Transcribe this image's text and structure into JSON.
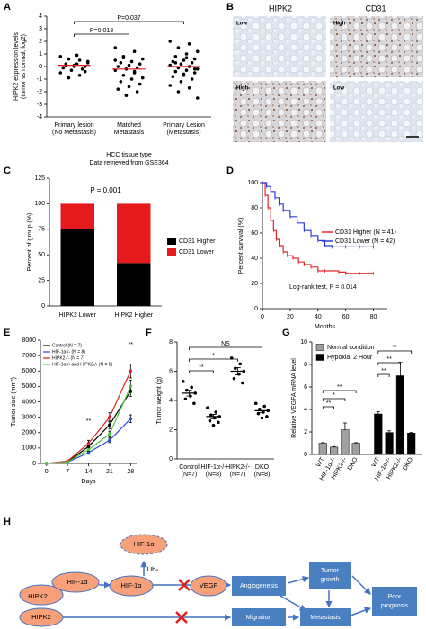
{
  "panel_labels": [
    "A",
    "B",
    "C",
    "D",
    "E",
    "F",
    "G",
    "H"
  ],
  "chart_data": [
    {
      "type": "strip",
      "ylabel": [
        "HIPK2 expression levels",
        "(tumor vs normal, log2)"
      ],
      "ylim": [
        -4,
        4
      ],
      "yticks": [
        -4,
        -3,
        -2,
        -1,
        0,
        1,
        2,
        3,
        4
      ],
      "categories": [
        [
          "Primary lesion",
          "(No Metastasis)"
        ],
        [
          "Matched",
          "Metastasis"
        ],
        [
          "Primary Lesion",
          "(Metastasis)"
        ]
      ],
      "values": [
        [
          0.8,
          0.5,
          0.6,
          0.3,
          0.2,
          0.1,
          0,
          0,
          -0.1,
          -0.2,
          -0.3,
          -0.5,
          -0.7,
          -0.9,
          0.4,
          0.9,
          0.2,
          -0.4,
          0.1,
          -0.1
        ],
        [
          1.5,
          1.2,
          0.8,
          0.6,
          0.4,
          0.3,
          0.2,
          0.1,
          0,
          -0.1,
          -0.2,
          -0.3,
          -0.5,
          -0.7,
          -0.9,
          -1.0,
          -1.2,
          -1.4,
          -1.6,
          -1.8,
          -2.0,
          -2.3,
          0.5,
          -0.4,
          0.7
        ],
        [
          2.0,
          1.8,
          1.5,
          1.2,
          1.0,
          0.8,
          0.6,
          0.5,
          0.4,
          0.3,
          0.2,
          0.1,
          0,
          -0.1,
          -0.2,
          -0.3,
          -0.4,
          -0.5,
          -0.6,
          -0.8,
          -1.0,
          -1.2,
          -1.5,
          -1.7,
          -2.0,
          -2.5,
          0.7,
          0.3,
          -0.2,
          -0.7
        ]
      ],
      "means": [
        0.1,
        -0.2,
        0.0
      ],
      "point_color": "#000000",
      "mean_color": "#e8161b",
      "xlabel": [
        "HCC tissue type",
        "Data retrieved from GSE364"
      ],
      "annotations": [
        "P=0.037",
        "P=0.018"
      ]
    },
    {
      "type": "stacked_bar",
      "title": "P = 0.001",
      "ylabel": "Percent of group (%)",
      "ylim": [
        0,
        125
      ],
      "yticks": [
        0,
        25,
        50,
        75,
        100,
        125
      ],
      "categories": [
        "HIPK2 Lower",
        "HIPK2 Higher"
      ],
      "series": [
        {
          "name": "CD31 Higher",
          "color": "#000000",
          "values": [
            75,
            42
          ]
        },
        {
          "name": "CD31 Lower",
          "color": "#e41a1c",
          "values": [
            25,
            58
          ]
        }
      ]
    },
    {
      "type": "survival",
      "xlabel": "Months",
      "ylabel": "Percent survival (%)",
      "xlim": [
        0,
        90
      ],
      "xticks": [
        0,
        20,
        40,
        60,
        80
      ],
      "ylim": [
        0,
        100
      ],
      "yticks": [
        0,
        20,
        40,
        60,
        80,
        100
      ],
      "annotation": "Log-rank test,  P = 0.014",
      "legend": "upper right",
      "series": [
        {
          "name": "CD31 Higher (N = 41)",
          "color": "#e3262a",
          "x": [
            0,
            2,
            4,
            6,
            8,
            10,
            12,
            15,
            18,
            22,
            26,
            30,
            35,
            40,
            45,
            55,
            60,
            70,
            80
          ],
          "values": [
            100,
            90,
            80,
            70,
            62,
            55,
            50,
            45,
            42,
            40,
            37,
            35,
            33,
            30,
            30,
            29,
            28,
            28,
            28
          ]
        },
        {
          "name": "CD31 Lower (N = 42)",
          "color": "#2b3bd6",
          "x": [
            0,
            3,
            6,
            9,
            12,
            15,
            20,
            25,
            30,
            35,
            40,
            45,
            50,
            60,
            70,
            80
          ],
          "values": [
            100,
            97,
            93,
            88,
            83,
            78,
            73,
            68,
            62,
            58,
            54,
            50,
            49,
            49,
            49,
            49
          ]
        }
      ]
    },
    {
      "type": "line",
      "xlabel": "Days",
      "ylabel": "Tumor size (mm³)",
      "x": [
        0,
        7,
        14,
        21,
        28
      ],
      "xlim": [
        -2,
        30
      ],
      "xticks": [
        0,
        7,
        14,
        21,
        28
      ],
      "ylim": [
        0,
        8000
      ],
      "yticks": [
        0,
        1000,
        2000,
        3000,
        4000,
        5000,
        6000,
        7000,
        8000
      ],
      "series": [
        {
          "name": "Control (N = 7)",
          "color": "#000000",
          "values": [
            0,
            100,
            1100,
            2500,
            4700
          ],
          "errors": [
            0,
            30,
            150,
            250,
            350
          ]
        },
        {
          "name": "HIF-1α-/- (N = 8)",
          "color": "#2b4bd8",
          "values": [
            0,
            80,
            700,
            1500,
            2900
          ],
          "errors": [
            0,
            20,
            100,
            150,
            250
          ]
        },
        {
          "name": "HIPK2-/- (N = 7)",
          "color": "#e0201c",
          "values": [
            0,
            150,
            1300,
            3000,
            6000
          ],
          "errors": [
            0,
            40,
            200,
            300,
            450
          ]
        },
        {
          "name": "HIF-1α-/- and HIPK2-/- (N = 8)",
          "color": "#47c83a",
          "values": [
            0,
            90,
            900,
            1900,
            5000
          ],
          "errors": [
            0,
            30,
            120,
            200,
            400
          ]
        }
      ],
      "annotations": [
        "**",
        "**"
      ]
    },
    {
      "type": "strip",
      "ylabel": "Tumor weight (g)",
      "ylim": [
        0,
        8
      ],
      "yticks": [
        0,
        2,
        4,
        6,
        8
      ],
      "categories": [
        [
          "Control",
          "(N=7)"
        ],
        [
          "HIF-1α-/-",
          "(N=8)"
        ],
        [
          "HIPK2-/-",
          "(N=7)"
        ],
        [
          "DKO",
          "(N=8)"
        ]
      ],
      "values": [
        [
          5.3,
          4.9,
          4.7,
          4.5,
          4.3,
          4.1,
          3.8
        ],
        [
          3.5,
          3.2,
          3.0,
          2.9,
          2.8,
          2.6,
          2.5,
          2.3
        ],
        [
          6.9,
          6.5,
          6.2,
          6.0,
          5.8,
          5.5,
          5.2
        ],
        [
          3.8,
          3.6,
          3.4,
          3.3,
          3.2,
          3.1,
          2.9,
          2.8
        ]
      ],
      "means": [
        4.5,
        2.9,
        6.0,
        3.3
      ],
      "errors": [
        0.2,
        0.15,
        0.25,
        0.12
      ],
      "point_color": "#000000",
      "mean_color": "#000000",
      "annotations": [
        "NS",
        "*",
        "**"
      ]
    },
    {
      "type": "grouped_bar",
      "ylabel": "Relative VEGFA mRNA level",
      "ylim": [
        0,
        10
      ],
      "yticks": [
        0,
        2,
        4,
        6,
        8,
        10
      ],
      "categories": [
        "WT",
        "HIF-1α-/-",
        "HIPK2-/-",
        "DKO"
      ],
      "series": [
        {
          "name": "Normal condition",
          "color": "#a0a0a0",
          "values": [
            1.0,
            0.65,
            2.2,
            1.0
          ],
          "errors": [
            0.05,
            0.05,
            0.6,
            0.05
          ]
        },
        {
          "name": "Hypoxia, 2 Hour",
          "color": "#000000",
          "values": [
            3.6,
            1.95,
            7.0,
            1.9
          ],
          "errors": [
            0.2,
            0.15,
            1.2,
            0.05
          ]
        }
      ],
      "annotations": [
        "**",
        "*",
        "**",
        "**",
        "**",
        "**"
      ]
    }
  ],
  "micrographs": {
    "columns": [
      "HIPK2",
      "CD31"
    ],
    "tiles": [
      "Low",
      "High",
      "High",
      "Low"
    ]
  },
  "diagram": {
    "nodes": [
      "HIF-1α",
      "Ubₙ",
      "HIPK2",
      "HIF-1α",
      "HIF-1α",
      "VEGF",
      "Angiogenesis",
      [
        "Tumor",
        "growth"
      ],
      "Metastasis",
      [
        "Poor",
        "prognosis"
      ],
      "HIPK2",
      "Migration"
    ]
  }
}
